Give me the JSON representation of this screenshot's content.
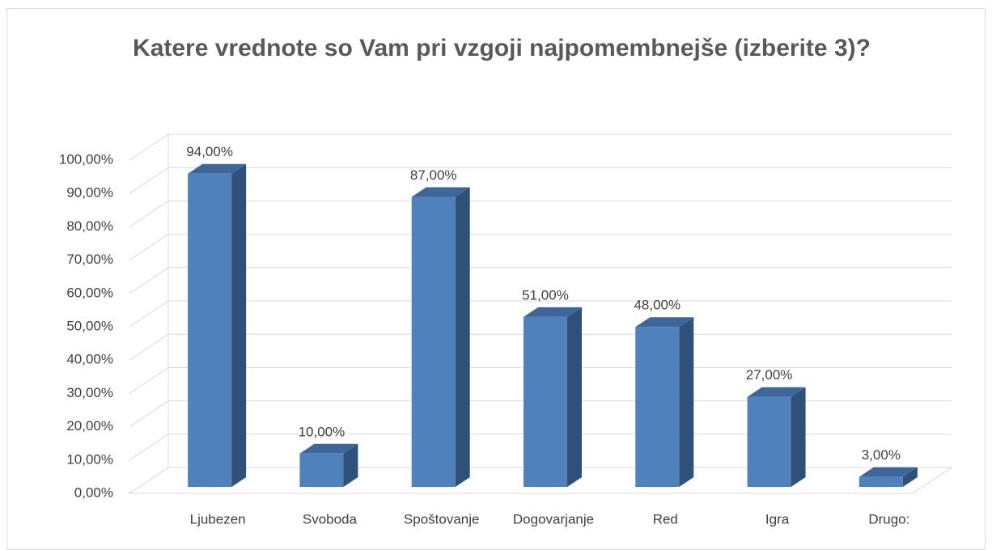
{
  "chart_data": {
    "type": "bar3d",
    "title": "Katere vrednote so Vam pri vzgoji najpomembnejše (izberite 3)?",
    "categories": [
      "Ljubezen",
      "Svoboda",
      "Spoštovanje",
      "Dogovarjanje",
      "Red",
      "Igra",
      "Drugo:"
    ],
    "values": [
      94,
      10,
      87,
      51,
      48,
      27,
      3
    ],
    "value_labels": [
      "94,00%",
      "10,00%",
      "87,00%",
      "51,00%",
      "48,00%",
      "27,00%",
      "3,00%"
    ],
    "color": "#4f81bd",
    "ylim": [
      0,
      100
    ],
    "yticks": [
      {
        "value": 0,
        "label": "0,00%"
      },
      {
        "value": 10,
        "label": "10,00%"
      },
      {
        "value": 20,
        "label": "20,00%"
      },
      {
        "value": 30,
        "label": "30,00%"
      },
      {
        "value": 40,
        "label": "40,00%"
      },
      {
        "value": 50,
        "label": "50,00%"
      },
      {
        "value": 60,
        "label": "60,00%"
      },
      {
        "value": 70,
        "label": "70,00%"
      },
      {
        "value": 80,
        "label": "80,00%"
      },
      {
        "value": 90,
        "label": "90,00%"
      },
      {
        "value": 100,
        "label": "100,00%"
      }
    ],
    "grid": true
  }
}
